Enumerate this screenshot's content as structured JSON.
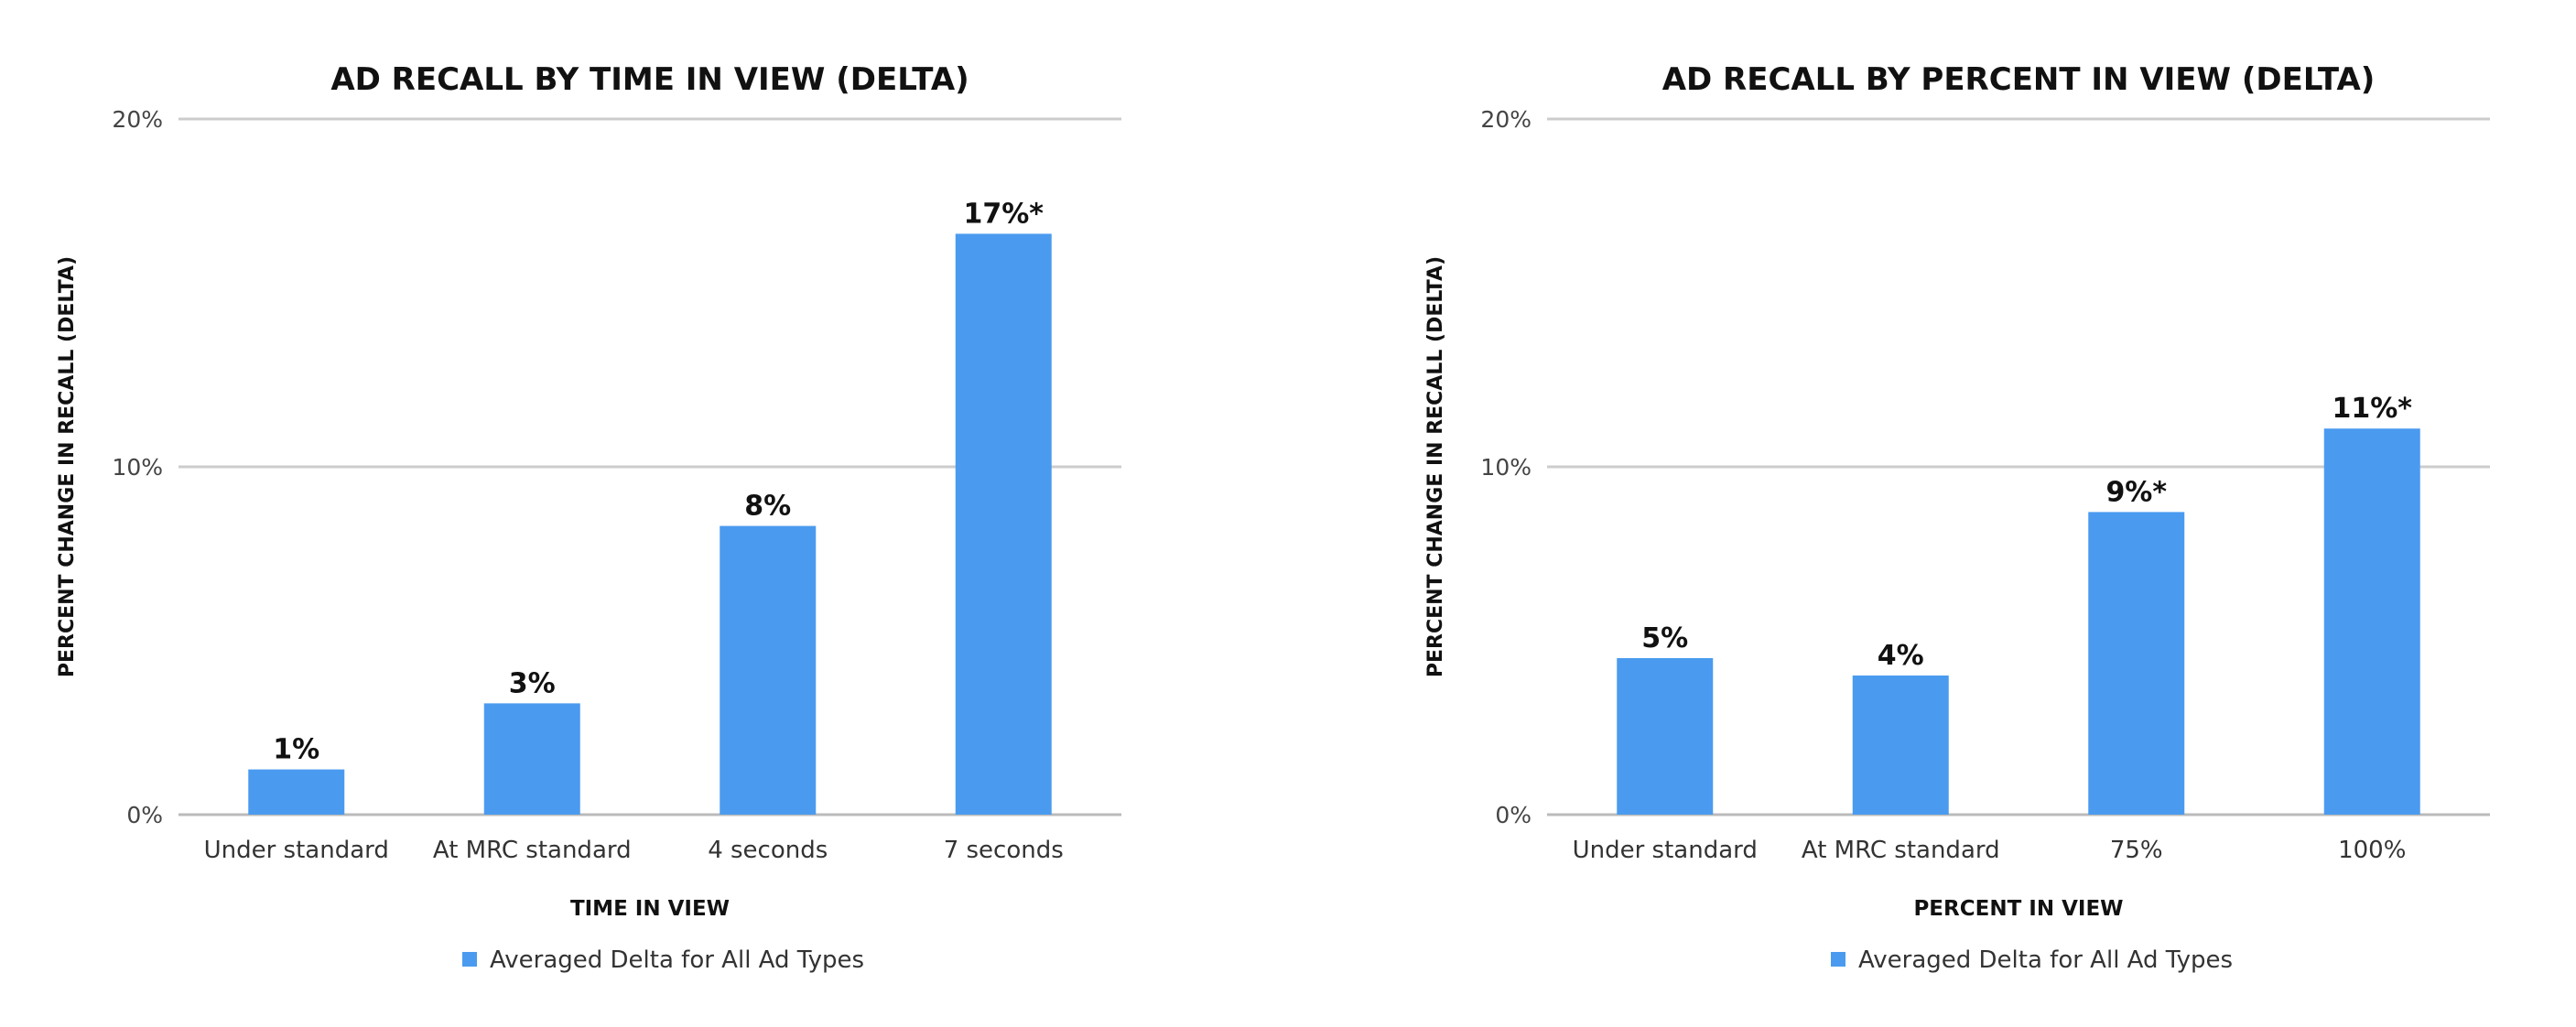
{
  "chart_data": [
    {
      "type": "bar",
      "title": "AD RECALL BY TIME IN VIEW (DELTA)",
      "xlabel": "TIME IN VIEW",
      "ylabel": "PERCENT CHANGE IN RECALL (DELTA)",
      "categories": [
        "Under standard",
        "At MRC standard",
        "4 seconds",
        "7 seconds"
      ],
      "series": [
        {
          "name": "Averaged Delta for All Ad Types",
          "values": [
            1.3,
            3.2,
            8.3,
            16.7
          ],
          "data_labels": [
            "1%",
            "3%",
            "8%",
            "17%*"
          ]
        }
      ],
      "ylim": [
        0,
        20
      ],
      "yticks": [
        0,
        10,
        20
      ],
      "ytick_labels": [
        "0%",
        "10%",
        "20%"
      ],
      "grid": true,
      "legend_position": "bottom",
      "bar_color": "#4a9bef"
    },
    {
      "type": "bar",
      "title": "AD RECALL BY PERCENT IN VIEW (DELTA)",
      "xlabel": "PERCENT IN VIEW",
      "ylabel": "PERCENT CHANGE IN RECALL (DELTA)",
      "categories": [
        "Under standard",
        "At MRC standard",
        "75%",
        "100%"
      ],
      "series": [
        {
          "name": "Averaged Delta for All Ad Types",
          "values": [
            4.5,
            4.0,
            8.7,
            11.1
          ],
          "data_labels": [
            "5%",
            "4%",
            "9%*",
            "11%*"
          ]
        }
      ],
      "ylim": [
        0,
        20
      ],
      "yticks": [
        0,
        10,
        20
      ],
      "ytick_labels": [
        "0%",
        "10%",
        "20%"
      ],
      "grid": true,
      "legend_position": "bottom",
      "bar_color": "#4a9bef"
    }
  ]
}
